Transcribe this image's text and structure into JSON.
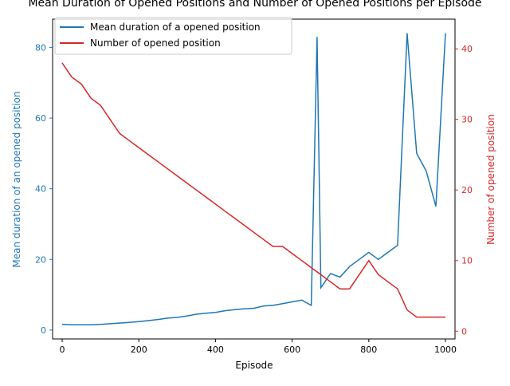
{
  "chart_data": {
    "type": "line",
    "title": "Mean Duration of Opened Positions and Number of Opened Positions per Episode",
    "xlabel": "Episode",
    "ylabel_left": "Mean duration of an opened position",
    "ylabel_right": "Number of opened position",
    "xlim": [
      -25,
      1025
    ],
    "ylim_left": [
      -2.5,
      88
    ],
    "ylim_right": [
      -1.1,
      44.2
    ],
    "x_ticks": [
      0,
      200,
      400,
      600,
      800,
      1000
    ],
    "y_left_ticks": [
      0,
      20,
      40,
      60,
      80
    ],
    "y_right_ticks": [
      0,
      10,
      20,
      30,
      40
    ],
    "grid": false,
    "legend_placement": "top-left",
    "colors": {
      "left": "#1f77b4",
      "right": "#d62728"
    },
    "series": [
      {
        "name": "Mean duration of a opened position",
        "axis": "left",
        "x": [
          0,
          25,
          50,
          75,
          100,
          125,
          150,
          175,
          200,
          225,
          250,
          275,
          300,
          325,
          350,
          375,
          400,
          425,
          450,
          475,
          500,
          525,
          550,
          575,
          600,
          625,
          650,
          665,
          675,
          700,
          725,
          750,
          775,
          800,
          825,
          850,
          875,
          900,
          925,
          950,
          975,
          1000
        ],
        "y": [
          1.6,
          1.5,
          1.5,
          1.5,
          1.6,
          1.8,
          2.0,
          2.2,
          2.4,
          2.7,
          3.0,
          3.4,
          3.6,
          4.0,
          4.5,
          4.8,
          5.0,
          5.5,
          5.8,
          6.0,
          6.2,
          6.8,
          7.0,
          7.5,
          8.0,
          8.5,
          7.0,
          83,
          12,
          16,
          15,
          18,
          20,
          22,
          20,
          22,
          24,
          84,
          50,
          45,
          35,
          84
        ]
      },
      {
        "name": "Number of opened position",
        "axis": "right",
        "x": [
          0,
          25,
          50,
          75,
          100,
          125,
          150,
          175,
          200,
          225,
          250,
          275,
          300,
          325,
          350,
          375,
          400,
          425,
          450,
          475,
          500,
          525,
          550,
          575,
          600,
          625,
          650,
          675,
          700,
          725,
          750,
          775,
          800,
          825,
          850,
          875,
          900,
          925,
          950,
          975,
          1000
        ],
        "y": [
          38,
          36,
          35,
          33,
          32,
          30,
          28,
          27,
          26,
          25,
          24,
          23,
          22,
          21,
          20,
          19,
          18,
          17,
          16,
          15,
          14,
          13,
          12,
          12,
          11,
          10,
          9,
          8,
          7,
          6,
          6,
          8,
          10,
          8,
          7,
          6,
          3,
          2,
          2,
          2,
          2
        ]
      }
    ]
  }
}
